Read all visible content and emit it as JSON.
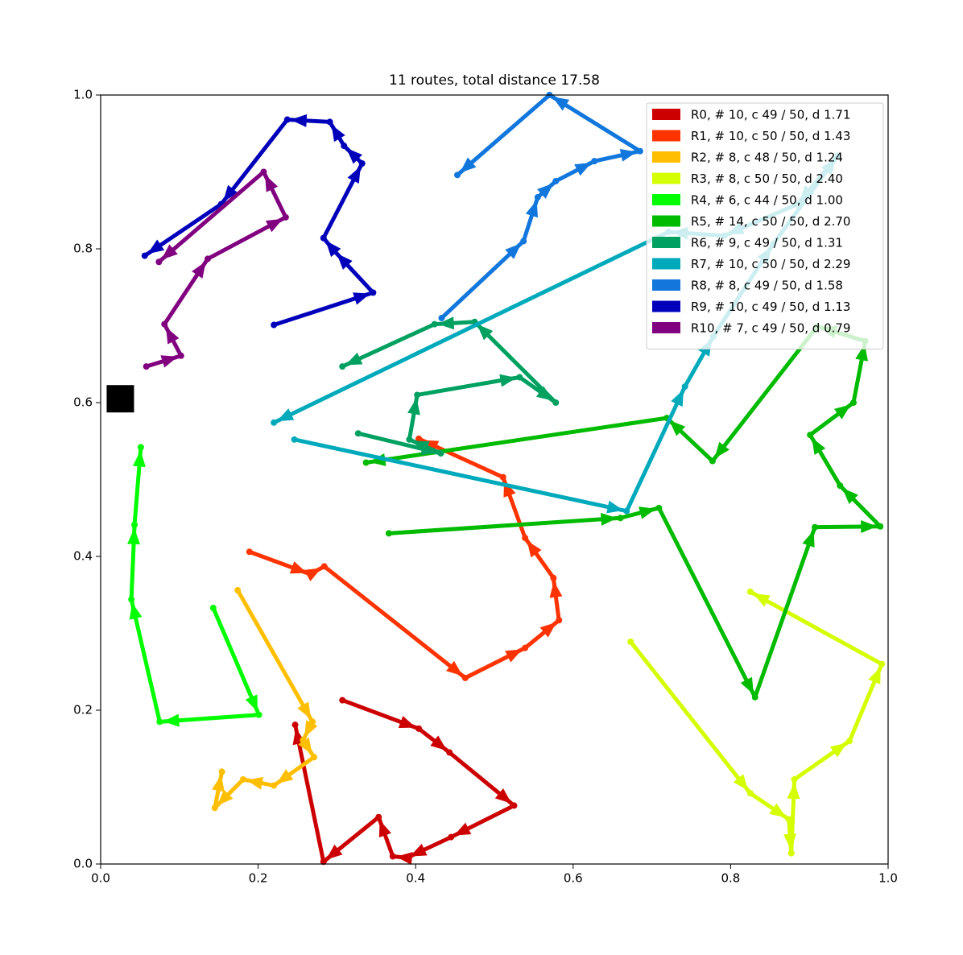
{
  "chart_data": {
    "type": "route",
    "title": "11 routes, total distance 17.58",
    "xlim": [
      0,
      1
    ],
    "ylim": [
      0,
      1
    ],
    "xticks": [
      {
        "value": 0,
        "label": "0.0"
      },
      0.2,
      0.4,
      0.6,
      0.8,
      {
        "value": 1,
        "label": "1.0"
      }
    ],
    "yticks": [
      {
        "value": 0,
        "label": "0.0"
      },
      0.2,
      0.4,
      0.6,
      0.8,
      {
        "value": 1,
        "label": "1.0"
      }
    ],
    "depot": {
      "x": 0.025,
      "y": 0.605,
      "color": "#000000"
    },
    "legend": "upper right",
    "series": [
      {
        "name": "R0, # 10, c 49 / 50, d 1.71",
        "color": "#cc0000",
        "x": [
          0.307,
          0.404,
          0.443,
          0.525,
          0.445,
          0.389,
          0.371,
          0.353,
          0.283,
          0.247
        ],
        "y": [
          0.213,
          0.176,
          0.145,
          0.076,
          0.035,
          0.008,
          0.01,
          0.061,
          0.003,
          0.181
        ]
      },
      {
        "name": "R1, # 10, c 50 / 50, d 1.43",
        "color": "#ff3300",
        "x": [
          0.189,
          0.266,
          0.284,
          0.463,
          0.539,
          0.582,
          0.575,
          0.539,
          0.511,
          0.404
        ],
        "y": [
          0.406,
          0.377,
          0.387,
          0.242,
          0.281,
          0.317,
          0.372,
          0.424,
          0.503,
          0.553
        ]
      },
      {
        "name": "R2, # 8, c 48 / 50, d 1.24",
        "color": "#ffbf00",
        "x": [
          0.174,
          0.269,
          0.257,
          0.271,
          0.22,
          0.181,
          0.145,
          0.154
        ],
        "y": [
          0.356,
          0.185,
          0.161,
          0.139,
          0.102,
          0.11,
          0.073,
          0.12
        ]
      },
      {
        "name": "R3, # 8, c 50 / 50, d 2.40",
        "color": "#d4ff00",
        "x": [
          0.673,
          0.825,
          0.874,
          0.877,
          0.881,
          0.951,
          0.992,
          0.825
        ],
        "y": [
          0.289,
          0.092,
          0.058,
          0.014,
          0.11,
          0.16,
          0.26,
          0.354
        ]
      },
      {
        "name": "R4, # 6, c 44 / 50, d 1.00",
        "color": "#00ff00",
        "x": [
          0.143,
          0.201,
          0.075,
          0.039,
          0.043,
          0.051
        ],
        "y": [
          0.333,
          0.194,
          0.185,
          0.344,
          0.441,
          0.542
        ]
      },
      {
        "name": "R5, # 14, c 50 / 50, d 2.70",
        "color": "#00bb00",
        "x": [
          0.366,
          0.66,
          0.709,
          0.831,
          0.907,
          0.99,
          0.939,
          0.901,
          0.956,
          0.971,
          0.91,
          0.777,
          0.719,
          0.337
        ],
        "y": [
          0.43,
          0.45,
          0.463,
          0.217,
          0.438,
          0.439,
          0.492,
          0.558,
          0.6,
          0.68,
          0.699,
          0.524,
          0.58,
          0.522
        ]
      },
      {
        "name": "R6, # 9, c 49 / 50, d 1.31",
        "color": "#00a060",
        "x": [
          0.327,
          0.432,
          0.392,
          0.402,
          0.532,
          0.578,
          0.475,
          0.424,
          0.307
        ],
        "y": [
          0.56,
          0.534,
          0.552,
          0.61,
          0.633,
          0.6,
          0.705,
          0.702,
          0.647
        ]
      },
      {
        "name": "R7, # 10, c 50 / 50, d 2.29",
        "color": "#00aabb",
        "x": [
          0.246,
          0.668,
          0.742,
          0.778,
          0.854,
          0.936,
          0.885,
          0.792,
          0.721,
          0.22
        ],
        "y": [
          0.552,
          0.459,
          0.621,
          0.686,
          0.806,
          0.921,
          0.858,
          0.817,
          0.822,
          0.574
        ]
      },
      {
        "name": "R8, # 8, c 49 / 50, d 1.58",
        "color": "#1177dd",
        "x": [
          0.433,
          0.537,
          0.555,
          0.578,
          0.627,
          0.685,
          0.57,
          0.453
        ],
        "y": [
          0.71,
          0.81,
          0.867,
          0.888,
          0.914,
          0.927,
          1.0,
          0.896
        ]
      },
      {
        "name": "R9, # 10, c 49 / 50, d 1.13",
        "color": "#0000bb",
        "x": [
          0.22,
          0.346,
          0.297,
          0.283,
          0.332,
          0.309,
          0.291,
          0.237,
          0.153,
          0.056
        ],
        "y": [
          0.701,
          0.743,
          0.797,
          0.814,
          0.911,
          0.934,
          0.965,
          0.968,
          0.858,
          0.791
        ]
      },
      {
        "name": "R10, # 7, c 49 / 50, d 0.79",
        "color": "#800080",
        "x": [
          0.058,
          0.102,
          0.081,
          0.136,
          0.235,
          0.207,
          0.074
        ],
        "y": [
          0.647,
          0.661,
          0.702,
          0.787,
          0.841,
          0.9,
          0.783
        ]
      }
    ]
  }
}
